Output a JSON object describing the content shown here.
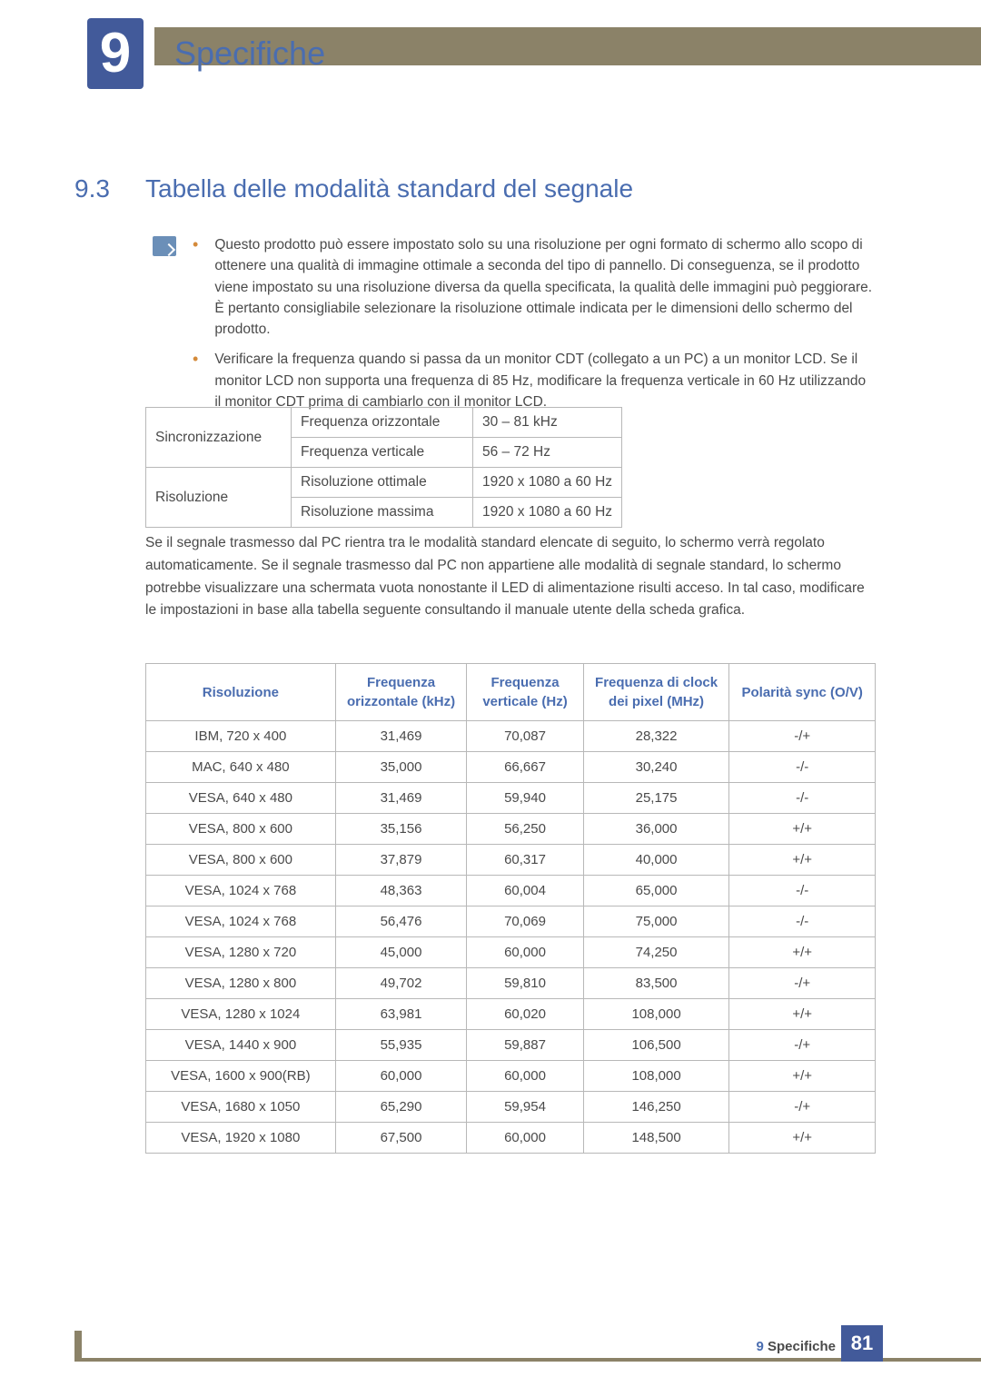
{
  "colors": {
    "accent_blue": "#4a6db0",
    "badge_blue": "#425a9a",
    "khaki": "#8b8268",
    "text": "#4a4a4a",
    "bullet": "#d48a3a",
    "border": "#b8b8b8"
  },
  "chapter": {
    "number": "9",
    "title": "Specifiche"
  },
  "section": {
    "number": "9.3",
    "title": "Tabella delle modalità standard del segnale"
  },
  "bullets": [
    "Questo prodotto può essere impostato solo su una risoluzione per ogni formato di schermo allo scopo di ottenere una qualità di immagine ottimale a seconda del tipo di pannello. Di conseguenza, se il prodotto viene impostato su una risoluzione diversa da quella specificata, la qualità delle immagini può peggiorare. È pertanto consigliabile selezionare la risoluzione ottimale indicata per le dimensioni dello schermo del prodotto.",
    "Verificare la frequenza quando si passa da un monitor CDT (collegato a un PC) a un monitor LCD. Se il monitor LCD non supporta una frequenza di 85 Hz, modificare la frequenza verticale in 60 Hz utilizzando il monitor CDT prima di cambiarlo con il monitor LCD."
  ],
  "spec_table": {
    "rows": [
      {
        "group": "Sincronizzazione",
        "label": "Frequenza orizzontale",
        "value": "30 – 81 kHz",
        "rowspan": 2
      },
      {
        "group": "",
        "label": "Frequenza verticale",
        "value": "56 – 72 Hz"
      },
      {
        "group": "Risoluzione",
        "label": "Risoluzione ottimale",
        "value": "1920 x 1080 a 60 Hz",
        "rowspan": 2
      },
      {
        "group": "",
        "label": "Risoluzione massima",
        "value": "1920 x 1080 a 60 Hz"
      }
    ]
  },
  "paragraph": "Se il segnale trasmesso dal PC rientra tra le modalità standard elencate di seguito, lo schermo verrà regolato automaticamente. Se il segnale trasmesso dal PC non appartiene alle modalità di segnale standard, lo schermo potrebbe visualizzare una schermata vuota nonostante il LED di alimentazione risulti acceso. In tal caso, modificare le impostazioni in base alla tabella seguente consultando il manuale utente della scheda grafica.",
  "main_table": {
    "columns": [
      "Risoluzione",
      "Frequenza orizzontale (kHz)",
      "Frequenza verticale (Hz)",
      "Frequenza di clock dei pixel (MHz)",
      "Polarità sync (O/V)"
    ],
    "col_widths": [
      "26%",
      "18%",
      "16%",
      "20%",
      "20%"
    ],
    "rows": [
      [
        "IBM, 720 x 400",
        "31,469",
        "70,087",
        "28,322",
        "-/+"
      ],
      [
        "MAC, 640 x 480",
        "35,000",
        "66,667",
        "30,240",
        "-/-"
      ],
      [
        "VESA, 640 x 480",
        "31,469",
        "59,940",
        "25,175",
        "-/-"
      ],
      [
        "VESA, 800 x 600",
        "35,156",
        "56,250",
        "36,000",
        "+/+"
      ],
      [
        "VESA, 800 x 600",
        "37,879",
        "60,317",
        "40,000",
        "+/+"
      ],
      [
        "VESA, 1024 x 768",
        "48,363",
        "60,004",
        "65,000",
        "-/-"
      ],
      [
        "VESA, 1024 x 768",
        "56,476",
        "70,069",
        "75,000",
        "-/-"
      ],
      [
        "VESA, 1280 x 720",
        "45,000",
        "60,000",
        "74,250",
        "+/+"
      ],
      [
        "VESA, 1280 x 800",
        "49,702",
        "59,810",
        "83,500",
        "-/+"
      ],
      [
        "VESA, 1280 x 1024",
        "63,981",
        "60,020",
        "108,000",
        "+/+"
      ],
      [
        "VESA, 1440 x 900",
        "55,935",
        "59,887",
        "106,500",
        "-/+"
      ],
      [
        "VESA, 1600 x 900(RB)",
        "60,000",
        "60,000",
        "108,000",
        "+/+"
      ],
      [
        "VESA, 1680 x 1050",
        "65,290",
        "59,954",
        "146,250",
        "-/+"
      ],
      [
        "VESA, 1920 x 1080",
        "67,500",
        "60,000",
        "148,500",
        "+/+"
      ]
    ]
  },
  "footer": {
    "chapter_ref": "9 Specifiche",
    "page": "81"
  }
}
